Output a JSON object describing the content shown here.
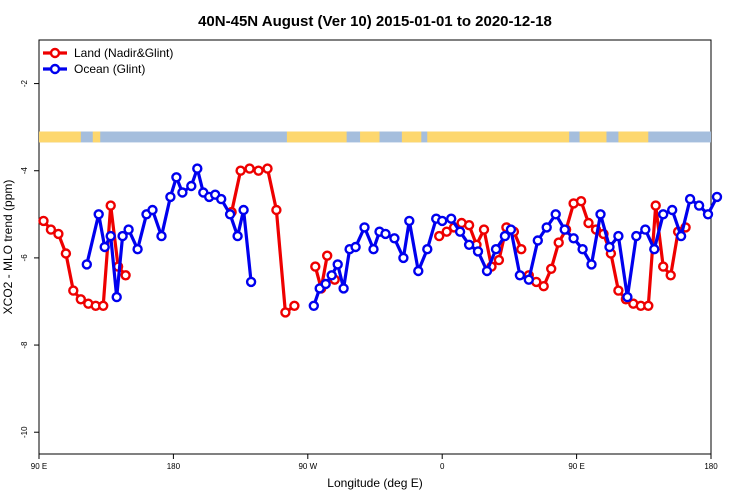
{
  "chart_data": {
    "type": "line",
    "title": "40N-45N August (Ver 10)   2015-01-01 to 2020-12-18",
    "xlabel": "Longitude (deg E)",
    "ylabel": "XCO2 - MLO trend (ppm)",
    "xlim": [
      90,
      450
    ],
    "ylim": [
      -10.5,
      -1
    ],
    "x_ticks": [
      {
        "value": 90,
        "label": "90 E"
      },
      {
        "value": 180,
        "label": "180"
      },
      {
        "value": 270,
        "label": "90 W"
      },
      {
        "value": 360,
        "label": "0"
      },
      {
        "value": 450,
        "label": "90 E"
      },
      {
        "value": 540,
        "label": "180"
      }
    ],
    "y_ticks": [
      {
        "value": -2,
        "label": "-2"
      },
      {
        "value": -4,
        "label": "-4"
      },
      {
        "value": -6,
        "label": "-6"
      },
      {
        "value": -8,
        "label": "-8"
      },
      {
        "value": -10,
        "label": "-10"
      }
    ],
    "x_plot_range": [
      90,
      540
    ],
    "legend_position": "top-left",
    "land_mask_band": {
      "y_range": [
        -3.35,
        -3.1
      ],
      "land_color": "#fdd76e",
      "ocean_color": "#a5bedd"
    },
    "series": [
      {
        "name": "Land (Nadir&Glint)",
        "color": "#ee0000",
        "segments": [
          {
            "x": [
              93,
              98,
              103,
              108,
              113,
              118,
              123,
              128,
              133,
              138,
              143,
              148
            ],
            "y": [
              -5.15,
              -5.35,
              -5.45,
              -5.9,
              -6.75,
              -6.95,
              -7.05,
              -7.1,
              -7.1,
              -4.8,
              -6.2,
              -6.4
            ]
          },
          {
            "x": [
              219,
              225,
              231,
              237,
              243,
              249,
              255,
              261
            ],
            "y": [
              -4.95,
              -4.0,
              -3.95,
              -4.0,
              -3.95,
              -4.9,
              -7.25,
              -7.1
            ]
          },
          {
            "x": [
              275,
              279,
              283
            ],
            "y": [
              -6.2,
              -6.7,
              -5.95
            ]
          },
          {
            "x": [
              288
            ],
            "y": [
              -6.5
            ]
          },
          {
            "x": [
              358,
              363,
              368,
              373,
              378,
              383,
              388,
              393,
              398,
              403
            ],
            "y": [
              -5.5,
              -5.4,
              -5.3,
              -5.2,
              -5.25,
              -5.7,
              -5.35,
              -6.2,
              -6.05,
              -5.3
            ]
          },
          {
            "x": [
              408,
              413
            ],
            "y": [
              -5.4,
              -5.8
            ]
          },
          {
            "x": [
              418,
              423,
              428,
              433,
              438,
              443,
              448,
              453,
              458,
              463,
              468,
              473,
              478,
              483,
              488,
              493,
              498,
              503,
              508,
              513,
              518,
              523
            ],
            "y": [
              -6.4,
              -6.55,
              -6.65,
              -6.25,
              -5.65,
              -5.35,
              -4.75,
              -4.7,
              -5.2,
              -5.35,
              -5.45,
              -5.9,
              -6.75,
              -6.95,
              -7.05,
              -7.1,
              -7.1,
              -4.8,
              -6.2,
              -6.4,
              -5.4,
              -5.3
            ]
          }
        ]
      },
      {
        "name": "Ocean (Glint)",
        "color": "#0000ee",
        "segments": [
          {
            "x": [
              122,
              130,
              134,
              138,
              142,
              146,
              150,
              156,
              162,
              166,
              172,
              178,
              182,
              186,
              192,
              196,
              200,
              204,
              208,
              212,
              218,
              223,
              227,
              232
            ],
            "y": [
              -6.15,
              -5.0,
              -5.75,
              -5.5,
              -6.9,
              -5.5,
              -5.35,
              -5.8,
              -5.0,
              -4.9,
              -5.5,
              -4.6,
              -4.15,
              -4.5,
              -4.35,
              -3.95,
              -4.5,
              -4.6,
              -4.55,
              -4.65,
              -5.0,
              -5.5,
              -4.9,
              -6.55
            ]
          },
          {
            "x": [
              274,
              278,
              282,
              286,
              290,
              294,
              298,
              302,
              308,
              314,
              318,
              322,
              328,
              334,
              338,
              344,
              350,
              356,
              360,
              366,
              372,
              378,
              384,
              390,
              396,
              402
            ],
            "y": [
              -7.1,
              -6.7,
              -6.6,
              -6.4,
              -6.15,
              -6.7,
              -5.8,
              -5.75,
              -5.3,
              -5.8,
              -5.4,
              -5.45,
              -5.55,
              -6.0,
              -5.15,
              -6.3,
              -5.8,
              -5.1,
              -5.15,
              -5.1,
              -5.4,
              -5.7,
              -5.85,
              -6.3,
              -5.8,
              -5.5
            ]
          },
          {
            "x": [
              406,
              412,
              418,
              424,
              430,
              436,
              442,
              448,
              454,
              460,
              466,
              472,
              478,
              484,
              490,
              496,
              502,
              508,
              514,
              520,
              526,
              532,
              538,
              544
            ],
            "y": [
              -5.35,
              -6.4,
              -6.5,
              -5.6,
              -5.3,
              -5.0,
              -5.35,
              -5.55,
              -5.8,
              -6.15,
              -5.0,
              -5.75,
              -5.5,
              -6.9,
              -5.5,
              -5.35,
              -5.8,
              -5.0,
              -4.9,
              -5.5,
              -4.65,
              -4.8,
              -5.0,
              -4.6
            ]
          }
        ]
      }
    ]
  }
}
